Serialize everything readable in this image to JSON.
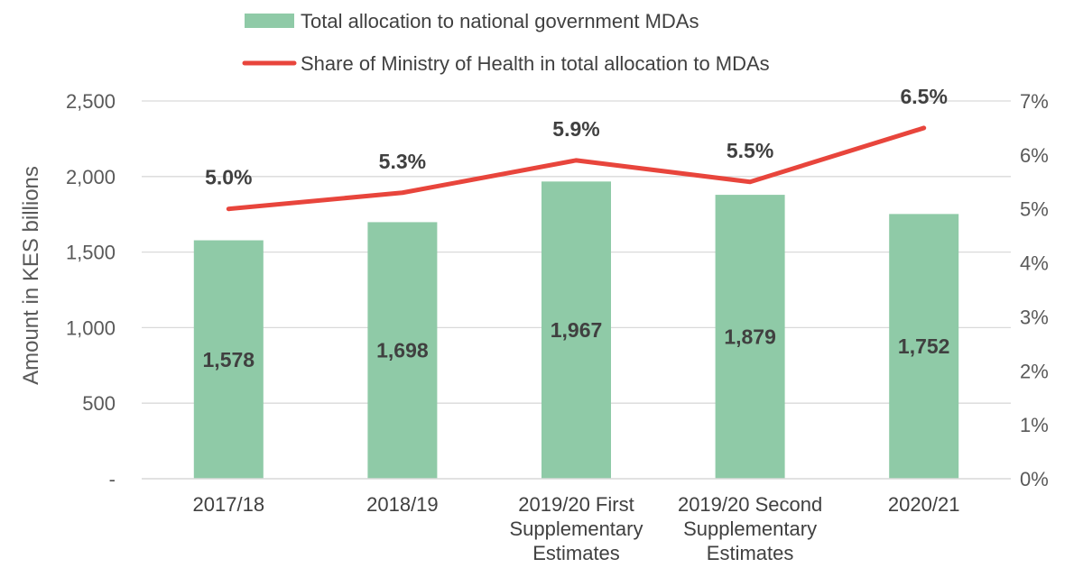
{
  "chart_data": {
    "type": "bar",
    "categories": [
      [
        "2017/18"
      ],
      [
        "2018/19"
      ],
      [
        "2019/20 First",
        "Supplementary",
        "Estimates"
      ],
      [
        "2019/20 Second",
        "Supplementary",
        "Estimates"
      ],
      [
        "2020/21"
      ]
    ],
    "series": [
      {
        "name": "Total allocation to national government MDAs",
        "type": "bar",
        "axis": "left",
        "values": [
          1578,
          1698,
          1967,
          1879,
          1752
        ],
        "labels": [
          "1,578",
          "1,698",
          "1,967",
          "1,879",
          "1,752"
        ],
        "color": "#8fcaa7"
      },
      {
        "name": "Share of Ministry of Health in total allocation to MDAs",
        "type": "line",
        "axis": "right",
        "values": [
          5.0,
          5.3,
          5.9,
          5.5,
          6.5
        ],
        "labels": [
          "5.0%",
          "5.3%",
          "5.9%",
          "5.5%",
          "6.5%"
        ],
        "color": "#e8453c"
      }
    ],
    "ylabel": "Amount in KES billions",
    "ylim": [
      0,
      2500
    ],
    "yticks": [
      0,
      500,
      1000,
      1500,
      2000,
      2500
    ],
    "ytick_labels": [
      "-",
      "500",
      "1,000",
      "1,500",
      "2,000",
      "2,500"
    ],
    "y2lim": [
      0,
      7
    ],
    "y2ticks": [
      0,
      1,
      2,
      3,
      4,
      5,
      6,
      7
    ],
    "y2tick_labels": [
      "0%",
      "1%",
      "2%",
      "3%",
      "4%",
      "5%",
      "6%",
      "7%"
    ],
    "grid": true,
    "legend_position": "top-center",
    "gridline_color": "#d9d9d9"
  }
}
